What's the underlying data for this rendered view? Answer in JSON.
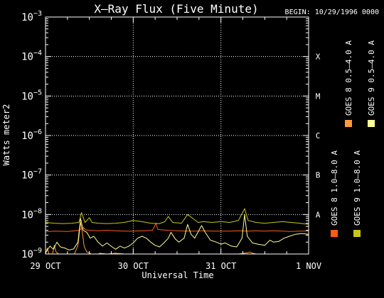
{
  "chart_data": {
    "type": "line",
    "title": "X–Ray Flux (Five Minute)",
    "begin_label": "BEGIN: 10/29/1996 0000",
    "xlabel": "Universal Time",
    "ylabel": "Watts meter2",
    "y_scale": "log",
    "ylim": [
      1e-09,
      0.001
    ],
    "xlim": [
      0,
      3
    ],
    "x_tick_labels": [
      {
        "x": 0,
        "label": "29 OCT"
      },
      {
        "x": 1,
        "label": "30 OCT"
      },
      {
        "x": 2,
        "label": "31 OCT"
      },
      {
        "x": 3,
        "label": "1 NOV"
      }
    ],
    "y_tick_labels": [
      {
        "exp": -3,
        "base": "10",
        "sup": "−3"
      },
      {
        "exp": -4,
        "base": "10",
        "sup": "−4"
      },
      {
        "exp": -5,
        "base": "10",
        "sup": "−5"
      },
      {
        "exp": -6,
        "base": "10",
        "sup": "−6"
      },
      {
        "exp": -7,
        "base": "10",
        "sup": "−7"
      },
      {
        "exp": -8,
        "base": "10",
        "sup": "−8"
      },
      {
        "exp": -9,
        "base": "10",
        "sup": "−9"
      }
    ],
    "flare_classes": [
      {
        "exp": -4,
        "label": "X"
      },
      {
        "exp": -5,
        "label": "M"
      },
      {
        "exp": -6,
        "label": "C"
      },
      {
        "exp": -7,
        "label": "B"
      },
      {
        "exp": -8,
        "label": "A"
      }
    ],
    "grid": true,
    "series": [
      {
        "name": "GOES 8 1.0–8.0 A",
        "color": "#ff5a14",
        "points": [
          [
            0,
            -8.44
          ],
          [
            0.1,
            -8.42
          ],
          [
            0.25,
            -8.43
          ],
          [
            0.38,
            -8.4
          ],
          [
            0.43,
            -8.33
          ],
          [
            0.46,
            -8.39
          ],
          [
            0.5,
            -8.4
          ],
          [
            0.6,
            -8.41
          ],
          [
            0.7,
            -8.4
          ],
          [
            0.8,
            -8.41
          ],
          [
            0.9,
            -8.42
          ],
          [
            1.0,
            -8.42
          ],
          [
            1.1,
            -8.41
          ],
          [
            1.22,
            -8.4
          ],
          [
            1.26,
            -8.22
          ],
          [
            1.28,
            -8.38
          ],
          [
            1.4,
            -8.4
          ],
          [
            1.5,
            -8.41
          ],
          [
            1.6,
            -8.42
          ],
          [
            1.7,
            -8.42
          ],
          [
            1.8,
            -8.41
          ],
          [
            1.9,
            -8.42
          ],
          [
            2.0,
            -8.42
          ],
          [
            2.1,
            -8.42
          ],
          [
            2.2,
            -8.41
          ],
          [
            2.3,
            -8.42
          ],
          [
            2.4,
            -8.41
          ],
          [
            2.5,
            -8.42
          ],
          [
            2.6,
            -8.41
          ],
          [
            2.7,
            -8.42
          ],
          [
            2.8,
            -8.43
          ],
          [
            2.9,
            -8.42
          ],
          [
            3.0,
            -8.42
          ]
        ]
      },
      {
        "name": "GOES 8 0.5–4.0 A",
        "color": "#ff9a3c",
        "points": [
          [
            0,
            -9.0
          ],
          [
            0.02,
            -8.85
          ],
          [
            0.04,
            -9.0
          ],
          [
            0.08,
            -9.0
          ],
          [
            0.1,
            -8.78
          ],
          [
            0.12,
            -8.95
          ],
          [
            0.15,
            -9.0
          ],
          [
            0.33,
            -9.0
          ],
          [
            0.37,
            -8.78
          ],
          [
            0.4,
            -8.2
          ],
          [
            0.42,
            -8.45
          ],
          [
            0.44,
            -8.8
          ],
          [
            0.47,
            -8.95
          ],
          [
            0.5,
            -8.97
          ],
          [
            0.52,
            -9.0
          ],
          [
            0.6,
            -9.0
          ],
          [
            0.62,
            -8.98
          ],
          [
            0.7,
            -9.0
          ],
          [
            0.8,
            -8.98
          ],
          [
            0.9,
            -9.0
          ],
          [
            0.95,
            -9.0
          ],
          [
            1.0,
            -9.0
          ],
          [
            1.2,
            -9.0
          ],
          [
            1.5,
            -9.0
          ],
          [
            1.8,
            -9.0
          ],
          [
            2.0,
            -9.0
          ],
          [
            2.2,
            -9.0
          ],
          [
            2.3,
            -8.97
          ],
          [
            2.33,
            -8.95
          ],
          [
            2.36,
            -8.98
          ],
          [
            2.4,
            -9.0
          ],
          [
            2.6,
            -9.0
          ],
          [
            2.8,
            -9.0
          ],
          [
            3.0,
            -9.0
          ]
        ]
      },
      {
        "name": "GOES 9 1.0–8.0 A",
        "color": "#c8c814",
        "points": [
          [
            0,
            -8.2
          ],
          [
            0.1,
            -8.22
          ],
          [
            0.2,
            -8.23
          ],
          [
            0.3,
            -8.22
          ],
          [
            0.38,
            -8.2
          ],
          [
            0.41,
            -7.95
          ],
          [
            0.45,
            -8.2
          ],
          [
            0.5,
            -8.08
          ],
          [
            0.53,
            -8.2
          ],
          [
            0.6,
            -8.22
          ],
          [
            0.7,
            -8.23
          ],
          [
            0.8,
            -8.22
          ],
          [
            0.9,
            -8.2
          ],
          [
            1.0,
            -8.15
          ],
          [
            1.1,
            -8.18
          ],
          [
            1.2,
            -8.22
          ],
          [
            1.3,
            -8.23
          ],
          [
            1.36,
            -8.18
          ],
          [
            1.4,
            -8.05
          ],
          [
            1.45,
            -8.2
          ],
          [
            1.55,
            -8.22
          ],
          [
            1.62,
            -8.0
          ],
          [
            1.68,
            -8.1
          ],
          [
            1.74,
            -8.2
          ],
          [
            1.8,
            -8.18
          ],
          [
            1.9,
            -8.2
          ],
          [
            2.0,
            -8.18
          ],
          [
            2.1,
            -8.2
          ],
          [
            2.2,
            -8.15
          ],
          [
            2.27,
            -7.85
          ],
          [
            2.31,
            -8.15
          ],
          [
            2.4,
            -8.2
          ],
          [
            2.5,
            -8.22
          ],
          [
            2.6,
            -8.2
          ],
          [
            2.7,
            -8.18
          ],
          [
            2.8,
            -8.2
          ],
          [
            2.9,
            -8.22
          ],
          [
            3.0,
            -8.25
          ]
        ]
      },
      {
        "name": "GOES 9 0.5–4.0 A",
        "color": "#ffff96",
        "points": [
          [
            0,
            -8.97
          ],
          [
            0.05,
            -8.8
          ],
          [
            0.09,
            -8.88
          ],
          [
            0.13,
            -8.7
          ],
          [
            0.17,
            -8.82
          ],
          [
            0.22,
            -8.85
          ],
          [
            0.27,
            -8.9
          ],
          [
            0.32,
            -8.87
          ],
          [
            0.37,
            -8.7
          ],
          [
            0.4,
            -8.1
          ],
          [
            0.43,
            -8.4
          ],
          [
            0.47,
            -8.45
          ],
          [
            0.51,
            -8.6
          ],
          [
            0.55,
            -8.55
          ],
          [
            0.6,
            -8.7
          ],
          [
            0.65,
            -8.8
          ],
          [
            0.7,
            -8.72
          ],
          [
            0.76,
            -8.82
          ],
          [
            0.8,
            -8.88
          ],
          [
            0.85,
            -8.8
          ],
          [
            0.9,
            -8.85
          ],
          [
            0.95,
            -8.8
          ],
          [
            1.0,
            -8.72
          ],
          [
            1.05,
            -8.6
          ],
          [
            1.1,
            -8.55
          ],
          [
            1.15,
            -8.6
          ],
          [
            1.2,
            -8.7
          ],
          [
            1.25,
            -8.78
          ],
          [
            1.3,
            -8.82
          ],
          [
            1.35,
            -8.72
          ],
          [
            1.4,
            -8.6
          ],
          [
            1.43,
            -8.45
          ],
          [
            1.48,
            -8.62
          ],
          [
            1.52,
            -8.7
          ],
          [
            1.58,
            -8.6
          ],
          [
            1.62,
            -8.25
          ],
          [
            1.66,
            -8.5
          ],
          [
            1.7,
            -8.6
          ],
          [
            1.78,
            -8.28
          ],
          [
            1.82,
            -8.45
          ],
          [
            1.88,
            -8.65
          ],
          [
            1.95,
            -8.7
          ],
          [
            2.0,
            -8.75
          ],
          [
            2.05,
            -8.72
          ],
          [
            2.12,
            -8.8
          ],
          [
            2.18,
            -8.82
          ],
          [
            2.24,
            -8.6
          ],
          [
            2.27,
            -8.0
          ],
          [
            2.3,
            -8.55
          ],
          [
            2.36,
            -8.72
          ],
          [
            2.42,
            -8.75
          ],
          [
            2.5,
            -8.78
          ],
          [
            2.56,
            -8.65
          ],
          [
            2.6,
            -8.7
          ],
          [
            2.66,
            -8.68
          ],
          [
            2.72,
            -8.6
          ],
          [
            2.78,
            -8.55
          ],
          [
            2.85,
            -8.5
          ],
          [
            2.92,
            -8.48
          ],
          [
            3.0,
            -8.5
          ]
        ]
      }
    ]
  }
}
